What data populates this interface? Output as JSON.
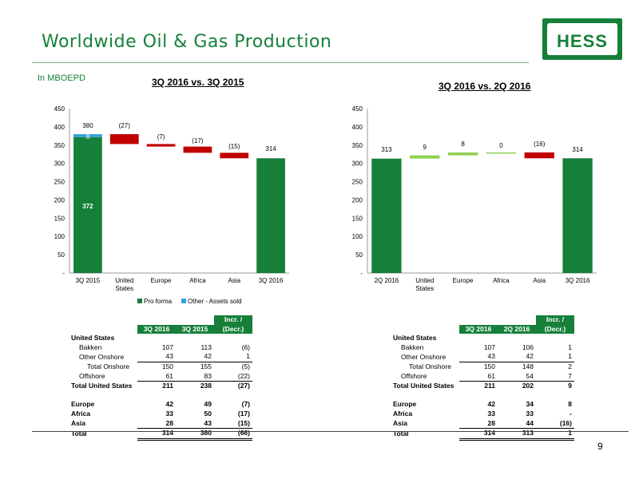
{
  "page": {
    "title": "Worldwide Oil & Gas Production",
    "logo_text": "HESS",
    "units": "In MBOEPD",
    "page_number": "9"
  },
  "colors": {
    "green": "#16803a",
    "red": "#c00000",
    "light_green": "#92d050",
    "blue": "#33a0e0"
  },
  "chart_data": [
    {
      "type": "bar",
      "title": "3Q 2016 vs. 3Q 2015",
      "categories": [
        "3Q 2015",
        "United States",
        "Europe",
        "Africa",
        "Asia",
        "3Q 2016"
      ],
      "ylim": [
        0,
        450
      ],
      "yticks": [
        "-",
        "50",
        "100",
        "150",
        "200",
        "250",
        "300",
        "350",
        "400",
        "450"
      ],
      "series": [
        {
          "name": "Pro forma",
          "values": [
            372,
            null,
            null,
            null,
            null,
            314
          ]
        },
        {
          "name": "Other - Assets sold",
          "values": [
            8,
            null,
            null,
            null,
            null,
            null
          ]
        }
      ],
      "waterfall_changes": [
        {
          "category": "United States",
          "value": -27,
          "label": "(27)"
        },
        {
          "category": "Europe",
          "value": -7,
          "label": "(7)"
        },
        {
          "category": "Africa",
          "value": -17,
          "label": "(17)"
        },
        {
          "category": "Asia",
          "value": -15,
          "label": "(15)"
        }
      ],
      "data_labels": [
        "380",
        "8",
        "372",
        "(27)",
        "(7)",
        "(17)",
        "(15)",
        "314"
      ],
      "legend": [
        "Pro forma",
        "Other - Assets sold"
      ],
      "legend_position": "bottom"
    },
    {
      "type": "bar",
      "title": "3Q 2016 vs. 2Q 2016",
      "categories": [
        "2Q 2016",
        "United States",
        "Europe",
        "Africa",
        "Asia",
        "3Q 2016"
      ],
      "ylim": [
        0,
        450
      ],
      "yticks": [
        "-",
        "50",
        "100",
        "150",
        "200",
        "250",
        "300",
        "350",
        "400",
        "450"
      ],
      "series": [
        {
          "values": [
            313,
            null,
            null,
            null,
            null,
            314
          ]
        }
      ],
      "waterfall_changes": [
        {
          "category": "United States",
          "value": 9,
          "label": "9"
        },
        {
          "category": "Europe",
          "value": 8,
          "label": "8"
        },
        {
          "category": "Africa",
          "value": 0,
          "label": "0"
        },
        {
          "category": "Asia",
          "value": -16,
          "label": "(16)"
        }
      ],
      "data_labels": [
        "313",
        "9",
        "8",
        "0",
        "(16)",
        "314"
      ]
    }
  ],
  "tables": [
    {
      "headers": [
        "3Q 2016",
        "3Q 2015",
        "Incr. /",
        "(Decr.)"
      ],
      "rows": [
        {
          "label": "United States",
          "cls": "bold",
          "indent": 0,
          "values": [
            "",
            "",
            ""
          ]
        },
        {
          "label": "Bakken",
          "cls": "",
          "indent": 10,
          "values": [
            "107",
            "113",
            "(6)"
          ]
        },
        {
          "label": "Other Onshore",
          "cls": "ul",
          "indent": 10,
          "values": [
            "43",
            "42",
            "1"
          ]
        },
        {
          "label": "Total Onshore",
          "cls": "",
          "indent": 20,
          "values": [
            "150",
            "155",
            "(5)"
          ]
        },
        {
          "label": "Offshore",
          "cls": "ul",
          "indent": 10,
          "values": [
            "61",
            "83",
            "(22)"
          ]
        },
        {
          "label": "Total United States",
          "cls": "bold",
          "indent": 0,
          "values": [
            "211",
            "238",
            "(27)"
          ]
        },
        {
          "label": "",
          "cls": "",
          "indent": 0,
          "values": [
            "",
            "",
            ""
          ]
        },
        {
          "label": "Europe",
          "cls": "bold",
          "indent": 0,
          "values": [
            "42",
            "49",
            "(7)"
          ]
        },
        {
          "label": "Africa",
          "cls": "bold",
          "indent": 0,
          "values": [
            "33",
            "50",
            "(17)"
          ]
        },
        {
          "label": "Asia",
          "cls": "bold ul",
          "indent": 0,
          "values": [
            "28",
            "43",
            "(15)"
          ]
        },
        {
          "label": "Total",
          "cls": "bold dbl",
          "indent": 0,
          "values": [
            "314",
            "380",
            "(66)"
          ]
        }
      ]
    },
    {
      "headers": [
        "3Q 2016",
        "2Q 2016",
        "Incr. /",
        "(Decr.)"
      ],
      "rows": [
        {
          "label": "United States",
          "cls": "bold",
          "indent": 0,
          "values": [
            "",
            "",
            ""
          ]
        },
        {
          "label": "Bakken",
          "cls": "",
          "indent": 10,
          "values": [
            "107",
            "106",
            "1"
          ]
        },
        {
          "label": "Other Onshore",
          "cls": "ul",
          "indent": 10,
          "values": [
            "43",
            "42",
            "1"
          ]
        },
        {
          "label": "Total Onshore",
          "cls": "",
          "indent": 20,
          "values": [
            "150",
            "148",
            "2"
          ]
        },
        {
          "label": "Offshore",
          "cls": "ul",
          "indent": 10,
          "values": [
            "61",
            "54",
            "7"
          ]
        },
        {
          "label": "Total United States",
          "cls": "bold",
          "indent": 0,
          "values": [
            "211",
            "202",
            "9"
          ]
        },
        {
          "label": "",
          "cls": "",
          "indent": 0,
          "values": [
            "",
            "",
            ""
          ]
        },
        {
          "label": "Europe",
          "cls": "bold",
          "indent": 0,
          "values": [
            "42",
            "34",
            "8"
          ]
        },
        {
          "label": "Africa",
          "cls": "bold",
          "indent": 0,
          "values": [
            "33",
            "33",
            "-"
          ]
        },
        {
          "label": "Asia",
          "cls": "bold ul",
          "indent": 0,
          "values": [
            "28",
            "44",
            "(16)"
          ]
        },
        {
          "label": "Total",
          "cls": "bold dbl",
          "indent": 0,
          "values": [
            "314",
            "313",
            "1"
          ]
        }
      ]
    }
  ]
}
